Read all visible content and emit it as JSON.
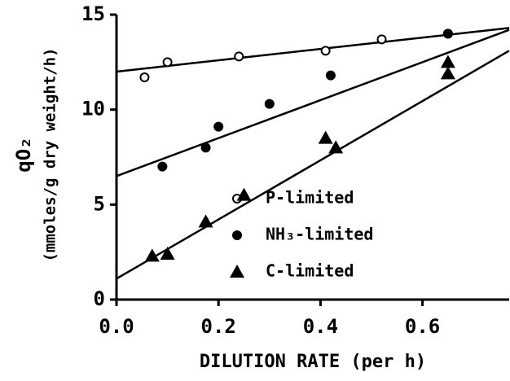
{
  "chart_data": {
    "type": "scatter",
    "ylabel": "qO₂",
    "ylabel_sub": "(mmoles/g dry weight/h)",
    "xlabel": "DILUTION RATE (per h)",
    "xlim": [
      0,
      0.77
    ],
    "ylim": [
      0,
      15
    ],
    "xticks": [
      {
        "value": 0,
        "label": "0.0"
      },
      0.2,
      0.4,
      0.6
    ],
    "yticks": [
      0,
      5,
      10,
      15
    ],
    "legend": "lower-right",
    "series": [
      {
        "name": "P-limited",
        "marker": "open-circle",
        "color": "#000000",
        "x": [
          0.055,
          0.1,
          0.24,
          0.41,
          0.52,
          0.65
        ],
        "values": [
          11.7,
          12.5,
          12.8,
          13.1,
          13.7,
          14.0
        ],
        "fit_x": [
          0,
          0.77
        ],
        "fit_y": [
          12.0,
          14.3
        ]
      },
      {
        "name": "NH₃-limited",
        "marker": "filled-circle",
        "color": "#000000",
        "x": [
          0.09,
          0.175,
          0.2,
          0.3,
          0.42,
          0.65
        ],
        "values": [
          7.0,
          8.0,
          9.1,
          10.3,
          11.8,
          14.0
        ],
        "fit_x": [
          0,
          0.77
        ],
        "fit_y": [
          6.5,
          14.2
        ]
      },
      {
        "name": "C-limited",
        "marker": "triangle",
        "color": "#000000",
        "x": [
          0.07,
          0.1,
          0.175,
          0.25,
          0.41,
          0.43,
          0.65,
          0.65
        ],
        "values": [
          2.3,
          2.4,
          4.1,
          5.5,
          8.5,
          8.0,
          12.5,
          11.9
        ],
        "fit_x": [
          0,
          0.77
        ],
        "fit_y": [
          1.1,
          13.1
        ]
      }
    ]
  }
}
